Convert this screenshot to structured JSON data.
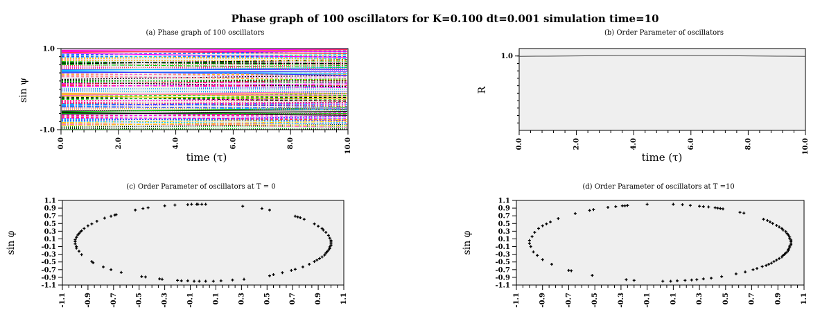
{
  "figure": {
    "title": "Phase graph of 100 oscillators for K=0.100 dt=0.001 simulation time=10"
  },
  "chart_data": [
    {
      "type": "line",
      "title": "(a) Phase graph of 100 oscillators",
      "xlabel": "time (τ)",
      "ylabel": "sin ψ",
      "xlim": [
        0,
        10
      ],
      "ylim": [
        -1,
        1
      ],
      "xticks": [
        "0.0",
        "2.0",
        "4.0",
        "6.0",
        "8.0",
        "10.0"
      ],
      "yticks": [
        "1.0",
        "-1.0"
      ],
      "n_series": 100,
      "series_start_phase_fractions": [
        0.02,
        0.07,
        0.11,
        0.16,
        0.21,
        0.26,
        0.31,
        0.38,
        0.43,
        0.49,
        0.55,
        0.59,
        0.64,
        0.68,
        0.72,
        0.77,
        0.82,
        0.86,
        0.91,
        0.96
      ],
      "series_drift_fraction": 0.05,
      "series_colors": [
        "#ff00ff",
        "#00c8ff",
        "#ffcc00",
        "#00cc00",
        "#ff3333",
        "#3333ff",
        "#ff66cc",
        "#000000"
      ],
      "background": "#efefef"
    },
    {
      "type": "line",
      "title": "(b) Order Parameter of oscillators",
      "xlabel": "time (τ)",
      "ylabel": "R",
      "xlim": [
        0,
        10
      ],
      "ylim": [
        0,
        1.1
      ],
      "xticks": [
        "0.0",
        "2.0",
        "4.0",
        "6.0",
        "8.0",
        "10.0"
      ],
      "yticks": [
        "1.0"
      ],
      "series": [
        {
          "x": [
            0,
            0.3,
            0.6,
            1.0,
            1.3,
            1.7,
            2.0,
            2.3,
            2.7,
            3.0,
            3.3,
            3.7,
            4.0,
            4.3,
            4.7,
            5.0,
            5.3,
            5.7,
            6.0,
            6.3,
            6.7,
            7.0,
            7.3,
            7.7,
            8.0,
            8.3,
            8.7,
            9.0,
            9.3,
            9.7,
            10.0
          ],
          "values": [
            0.995,
            0.996,
            0.997,
            0.998,
            0.999,
            1.0,
            1.001,
            1.002,
            1.003,
            1.004,
            1.005,
            1.006,
            1.006,
            1.006,
            1.006,
            1.006,
            1.006,
            1.006,
            1.005,
            1.005,
            1.004,
            1.004,
            1.003,
            1.002,
            1.001,
            1.0,
            0.999,
            0.998,
            0.997,
            0.996,
            0.995
          ]
        }
      ],
      "background": "#efefef"
    },
    {
      "type": "scatter",
      "title": "(c) Order Parameter of oscillators at T = 0",
      "xlabel": "",
      "ylabel": "sin φ",
      "xlim": [
        -1.1,
        1.1
      ],
      "ylim": [
        -1.1,
        1.1
      ],
      "xticks": [
        "-1.1",
        "-0.9",
        "-0.7",
        "-0.5",
        "-0.3",
        "-0.1",
        "0.1",
        "0.3",
        "0.5",
        "0.7",
        "0.9",
        "1.1"
      ],
      "yticks": [
        "1.1",
        "0.9",
        "0.7",
        "0.5",
        "0.3",
        "0.1",
        "-0.1",
        "-0.3",
        "-0.5",
        "-0.7",
        "-0.9",
        "-1.1"
      ],
      "points": [
        [
          -0.05,
          1.0
        ],
        [
          -0.09,
          1.0
        ],
        [
          -0.12,
          0.99
        ],
        [
          -0.22,
          0.98
        ],
        [
          -0.3,
          0.96
        ],
        [
          -0.43,
          0.91
        ],
        [
          -0.47,
          0.89
        ],
        [
          -0.53,
          0.85
        ],
        [
          -0.68,
          0.73
        ],
        [
          -0.69,
          0.72
        ],
        [
          -0.72,
          0.69
        ],
        [
          -0.77,
          0.64
        ],
        [
          -0.83,
          0.56
        ],
        [
          -0.87,
          0.49
        ],
        [
          -0.9,
          0.44
        ],
        [
          -0.93,
          0.37
        ],
        [
          -0.95,
          0.31
        ],
        [
          -0.96,
          0.28
        ],
        [
          -0.97,
          0.24
        ],
        [
          -0.98,
          0.2
        ],
        [
          -0.99,
          0.14
        ],
        [
          -1.0,
          0.08
        ],
        [
          -1.0,
          0.03
        ],
        [
          -1.0,
          -0.03
        ],
        [
          -0.99,
          -0.1
        ],
        [
          -0.99,
          -0.14
        ],
        [
          -0.97,
          -0.22
        ],
        [
          -0.95,
          -0.31
        ],
        [
          -0.87,
          -0.49
        ],
        [
          -0.86,
          -0.52
        ],
        [
          -0.78,
          -0.63
        ],
        [
          -0.72,
          -0.7
        ],
        [
          -0.64,
          -0.77
        ],
        [
          -0.48,
          -0.88
        ],
        [
          -0.45,
          -0.89
        ],
        [
          -0.34,
          -0.94
        ],
        [
          -0.32,
          -0.95
        ],
        [
          -0.2,
          -0.98
        ],
        [
          -0.17,
          -0.99
        ],
        [
          -0.12,
          -0.99
        ],
        [
          -0.07,
          -1.0
        ],
        [
          -0.03,
          -1.0
        ],
        [
          0.02,
          -1.0
        ],
        [
          0.08,
          -1.0
        ],
        [
          0.14,
          -0.99
        ],
        [
          0.23,
          -0.97
        ],
        [
          0.32,
          -0.95
        ],
        [
          0.52,
          -0.86
        ],
        [
          0.55,
          -0.83
        ],
        [
          0.62,
          -0.78
        ],
        [
          0.69,
          -0.72
        ],
        [
          0.72,
          -0.69
        ],
        [
          0.78,
          -0.63
        ],
        [
          0.83,
          -0.56
        ],
        [
          0.87,
          -0.49
        ],
        [
          0.89,
          -0.45
        ],
        [
          0.91,
          -0.41
        ],
        [
          0.93,
          -0.37
        ],
        [
          0.95,
          -0.32
        ],
        [
          0.96,
          -0.27
        ],
        [
          0.97,
          -0.23
        ],
        [
          0.98,
          -0.19
        ],
        [
          0.99,
          -0.15
        ],
        [
          0.99,
          -0.11
        ],
        [
          1.0,
          -0.07
        ],
        [
          1.0,
          -0.03
        ],
        [
          1.0,
          0.02
        ],
        [
          1.0,
          0.06
        ],
        [
          0.99,
          0.12
        ],
        [
          0.98,
          0.19
        ],
        [
          0.96,
          0.27
        ],
        [
          0.94,
          0.33
        ],
        [
          0.93,
          0.37
        ],
        [
          0.9,
          0.43
        ],
        [
          0.87,
          0.49
        ],
        [
          0.79,
          0.61
        ],
        [
          0.76,
          0.65
        ],
        [
          0.74,
          0.67
        ],
        [
          0.72,
          0.69
        ],
        [
          0.52,
          0.85
        ],
        [
          0.46,
          0.89
        ],
        [
          0.31,
          0.95
        ],
        [
          0.02,
          1.0
        ],
        [
          -0.01,
          1.0
        ],
        [
          -0.04,
          1.0
        ]
      ],
      "background": "#efefef"
    },
    {
      "type": "scatter",
      "title": "(d) Order Parameter of oscillators at T =10",
      "xlabel": "",
      "ylabel": "sin φ",
      "xlim": [
        -1.1,
        1.1
      ],
      "ylim": [
        -1.1,
        1.1
      ],
      "xticks": [
        "-1.1",
        "-0.9",
        "-0.7",
        "-0.5",
        "-0.3",
        "-0.1",
        "0.1",
        "0.3",
        "0.5",
        "0.7",
        "0.9",
        "1.1"
      ],
      "yticks": [
        "1.1",
        "0.9",
        "0.7",
        "0.5",
        "0.3",
        "0.1",
        "-0.1",
        "-0.3",
        "-0.5",
        "-0.7",
        "-0.9",
        "-1.1"
      ],
      "points": [
        [
          -0.1,
          1.0
        ],
        [
          0.1,
          1.0
        ],
        [
          0.17,
          0.99
        ],
        [
          0.23,
          0.97
        ],
        [
          0.33,
          0.94
        ],
        [
          0.44,
          0.9
        ],
        [
          0.46,
          0.89
        ],
        [
          0.48,
          0.88
        ],
        [
          -0.25,
          0.97
        ],
        [
          -0.27,
          0.96
        ],
        [
          -0.29,
          0.96
        ],
        [
          -0.34,
          0.94
        ],
        [
          -0.4,
          0.92
        ],
        [
          -0.51,
          0.86
        ],
        [
          -0.54,
          0.84
        ],
        [
          -0.65,
          0.76
        ],
        [
          -0.78,
          0.63
        ],
        [
          -0.84,
          0.54
        ],
        [
          -0.87,
          0.49
        ],
        [
          -0.9,
          0.44
        ],
        [
          -0.93,
          0.37
        ],
        [
          -0.96,
          0.27
        ],
        [
          -0.98,
          0.16
        ],
        [
          -1.0,
          0.06
        ],
        [
          -1.0,
          -0.02
        ],
        [
          -0.99,
          -0.1
        ],
        [
          -0.97,
          -0.24
        ],
        [
          -0.94,
          -0.33
        ],
        [
          -0.9,
          -0.44
        ],
        [
          -0.83,
          -0.56
        ],
        [
          -0.7,
          -0.72
        ],
        [
          -0.68,
          -0.73
        ],
        [
          -0.52,
          -0.85
        ],
        [
          -0.26,
          -0.96
        ],
        [
          -0.2,
          -0.98
        ],
        [
          0.02,
          -1.0
        ],
        [
          0.08,
          -1.0
        ],
        [
          0.13,
          -0.99
        ],
        [
          0.19,
          -0.98
        ],
        [
          0.24,
          -0.97
        ],
        [
          0.28,
          -0.96
        ],
        [
          0.33,
          -0.94
        ],
        [
          0.39,
          -0.92
        ],
        [
          0.47,
          -0.88
        ],
        [
          0.58,
          -0.81
        ],
        [
          0.65,
          -0.76
        ],
        [
          0.71,
          -0.7
        ],
        [
          0.74,
          -0.67
        ],
        [
          0.78,
          -0.62
        ],
        [
          0.81,
          -0.59
        ],
        [
          0.83,
          -0.56
        ],
        [
          0.85,
          -0.53
        ],
        [
          0.87,
          -0.49
        ],
        [
          0.89,
          -0.45
        ],
        [
          0.91,
          -0.41
        ],
        [
          0.93,
          -0.37
        ],
        [
          0.94,
          -0.33
        ],
        [
          0.95,
          -0.3
        ],
        [
          0.96,
          -0.27
        ],
        [
          0.97,
          -0.24
        ],
        [
          0.98,
          -0.2
        ],
        [
          0.98,
          -0.17
        ],
        [
          0.99,
          -0.13
        ],
        [
          0.99,
          -0.09
        ],
        [
          1.0,
          -0.05
        ],
        [
          1.0,
          -0.01
        ],
        [
          1.0,
          0.03
        ],
        [
          1.0,
          0.07
        ],
        [
          0.99,
          0.11
        ],
        [
          0.99,
          0.15
        ],
        [
          0.98,
          0.2
        ],
        [
          0.97,
          0.24
        ],
        [
          0.96,
          0.29
        ],
        [
          0.94,
          0.33
        ],
        [
          0.93,
          0.37
        ],
        [
          0.91,
          0.41
        ],
        [
          0.89,
          0.45
        ],
        [
          0.86,
          0.5
        ],
        [
          0.84,
          0.54
        ],
        [
          0.82,
          0.58
        ],
        [
          0.79,
          0.61
        ],
        [
          0.64,
          0.77
        ],
        [
          0.61,
          0.79
        ],
        [
          0.42,
          0.91
        ],
        [
          0.37,
          0.93
        ],
        [
          0.3,
          0.95
        ]
      ],
      "background": "#efefef"
    }
  ]
}
